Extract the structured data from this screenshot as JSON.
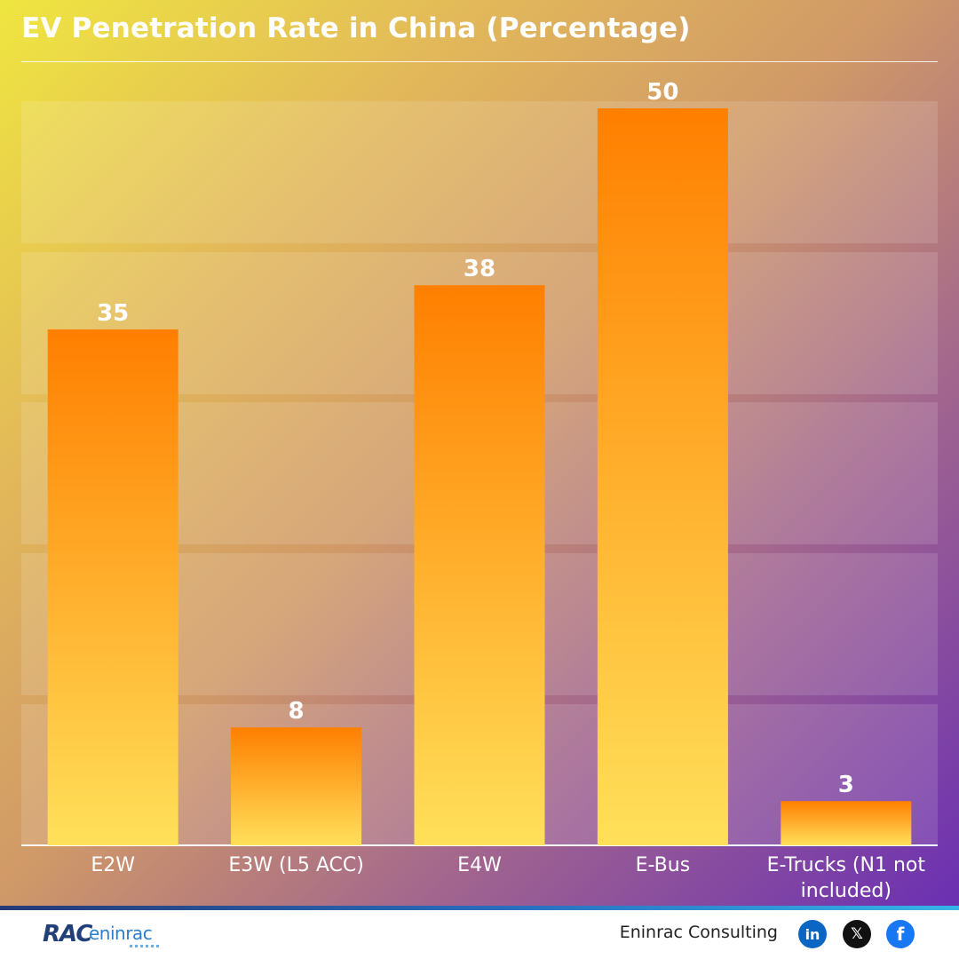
{
  "chart_data": {
    "type": "bar",
    "title": "EV Penetration Rate in China (Percentage)",
    "categories": [
      "E2W",
      "E3W (L5 ACC)",
      "E4W",
      "E-Bus",
      "E-Trucks (N1 not included)"
    ],
    "category_lines": [
      [
        "E2W"
      ],
      [
        "E3W (L5 ACC)"
      ],
      [
        "E4W"
      ],
      [
        "E-Bus"
      ],
      [
        "E-Trucks (N1 not",
        "included)"
      ]
    ],
    "values": [
      35,
      8,
      38,
      50,
      3
    ],
    "value_labels": [
      "35",
      "8",
      "38",
      "50",
      "3"
    ],
    "ylim": [
      0,
      50
    ],
    "grid": "horizontal bands",
    "legend": "none"
  },
  "colors": {
    "bar_top": "#ff7f00",
    "bar_bottom": "#ffe05a",
    "band": "#ffffff"
  },
  "footer": {
    "logo_text_primary": "RAC",
    "logo_text_secondary": "eninrac",
    "brand": "Eninrac Consulting",
    "social": [
      {
        "name": "linkedin",
        "glyph": "in"
      },
      {
        "name": "x",
        "glyph": "𝕏"
      },
      {
        "name": "facebook",
        "glyph": "f"
      }
    ]
  }
}
